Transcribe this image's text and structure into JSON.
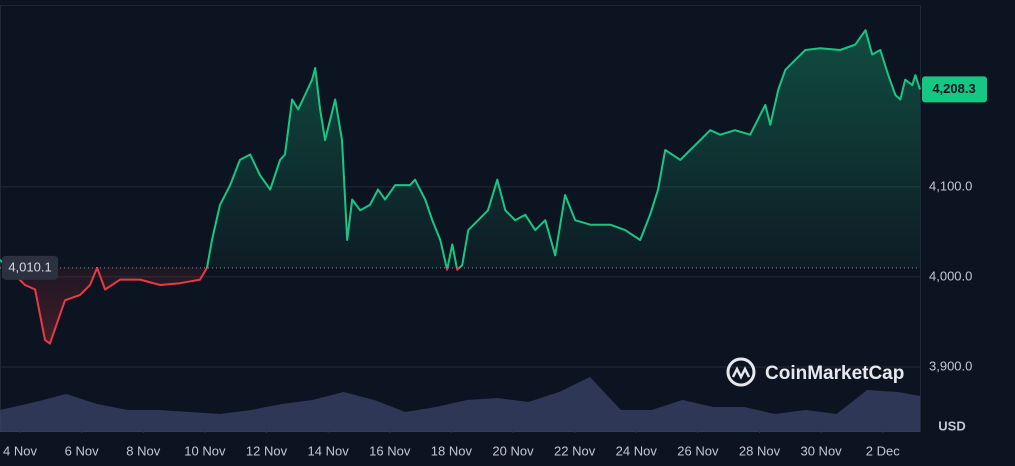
{
  "chart_data": {
    "type": "line",
    "x": [
      3.35,
      4.16,
      4.49,
      4.81,
      4.97,
      5.46,
      5.95,
      6.27,
      6.5,
      6.76,
      7.25,
      7.9,
      8.55,
      9.19,
      9.84,
      10.07,
      10.23,
      10.49,
      10.82,
      11.14,
      11.47,
      11.79,
      12.12,
      12.44,
      12.6,
      12.83,
      13.03,
      13.25,
      13.48,
      13.58,
      13.74,
      13.9,
      14.23,
      14.45,
      14.62,
      14.78,
      15.04,
      15.36,
      15.62,
      15.85,
      16.18,
      16.66,
      16.82,
      17.15,
      17.38,
      17.64,
      17.86,
      18.03,
      18.19,
      18.35,
      18.55,
      18.87,
      19.19,
      19.49,
      19.75,
      20.07,
      20.4,
      20.72,
      21.05,
      21.37,
      21.69,
      22.02,
      22.51,
      23.16,
      23.64,
      24.13,
      24.45,
      24.71,
      24.94,
      25.43,
      25.75,
      26.08,
      26.4,
      26.73,
      27.21,
      27.7,
      28.19,
      28.35,
      28.61,
      28.84,
      29.16,
      29.49,
      29.97,
      30.62,
      31.11,
      31.44,
      31.66,
      31.92,
      32.18,
      32.41,
      32.57,
      32.73,
      32.96,
      33.06,
      33.21
    ],
    "series": [
      {
        "name": "USD",
        "up_color": "#16c784",
        "down_color": "#ea3943",
        "values": [
          4019,
          3991,
          3986,
          3930,
          3926,
          3974,
          3980,
          3991,
          4010,
          3986,
          3997,
          3997,
          3991,
          3993,
          3997,
          4010,
          4041,
          4080,
          4102,
          4130,
          4136,
          4113,
          4097,
          4130,
          4136,
          4197,
          4186,
          4202,
          4219,
          4232,
          4186,
          4152,
          4197,
          4152,
          4041,
          4086,
          4074,
          4080,
          4097,
          4086,
          4102,
          4102,
          4108,
          4086,
          4063,
          4041,
          4008,
          4036,
          4008,
          4013,
          4052,
          4063,
          4074,
          4108,
          4074,
          4063,
          4069,
          4052,
          4063,
          4024,
          4091,
          4063,
          4058,
          4058,
          4052,
          4041,
          4069,
          4097,
          4141,
          4130,
          4141,
          4152,
          4163,
          4158,
          4163,
          4158,
          4191,
          4169,
          4208,
          4230,
          4241,
          4252,
          4254,
          4252,
          4258,
          4274,
          4247,
          4252,
          4224,
          4202,
          4197,
          4219,
          4213,
          4224,
          4208.3
        ]
      }
    ],
    "volume": {
      "x": [
        3.35,
        4.5,
        5.5,
        6.5,
        7.5,
        8.5,
        9.5,
        10.5,
        11.5,
        12.5,
        13.5,
        14.5,
        15.5,
        16.5,
        17.5,
        18.5,
        19.5,
        20.5,
        21.5,
        22.5,
        23.5,
        24.5,
        25.5,
        26.5,
        27.5,
        28.5,
        29.5,
        30.5,
        31.5,
        32.5,
        33.21
      ],
      "values": [
        22,
        30,
        38,
        28,
        22,
        22,
        20,
        18,
        22,
        28,
        32,
        40,
        32,
        20,
        25,
        32,
        34,
        30,
        40,
        55,
        22,
        22,
        32,
        25,
        25,
        18,
        22,
        18,
        42,
        40,
        36
      ],
      "vlim": [
        0,
        60
      ],
      "color": "#3a4468"
    },
    "baseline": {
      "value": 4010.1,
      "label": "4,010.1"
    },
    "current_price": {
      "value": 4208.3,
      "label": "4,208.3"
    },
    "xlim": [
      3.35,
      33.21
    ],
    "ylim": [
      3830,
      4302
    ],
    "xticks": [
      {
        "value": 4,
        "label": "4 Nov"
      },
      {
        "value": 6,
        "label": "6 Nov"
      },
      {
        "value": 8,
        "label": "8 Nov"
      },
      {
        "value": 10,
        "label": "10 Nov"
      },
      {
        "value": 12,
        "label": "12 Nov"
      },
      {
        "value": 14,
        "label": "14 Nov"
      },
      {
        "value": 16,
        "label": "16 Nov"
      },
      {
        "value": 18,
        "label": "18 Nov"
      },
      {
        "value": 20,
        "label": "20 Nov"
      },
      {
        "value": 22,
        "label": "22 Nov"
      },
      {
        "value": 24,
        "label": "24 Nov"
      },
      {
        "value": 26,
        "label": "26 Nov"
      },
      {
        "value": 28,
        "label": "28 Nov"
      },
      {
        "value": 30,
        "label": "30 Nov"
      },
      {
        "value": 32,
        "label": "2 Dec"
      }
    ],
    "yticks": [
      {
        "value": 3900,
        "label": "3,900.0"
      },
      {
        "value": 4000,
        "label": "4,000.0"
      },
      {
        "value": 4100,
        "label": "4,100.0"
      }
    ],
    "y_unit": "USD",
    "watermark": "CoinMarketCap",
    "grid": true
  }
}
